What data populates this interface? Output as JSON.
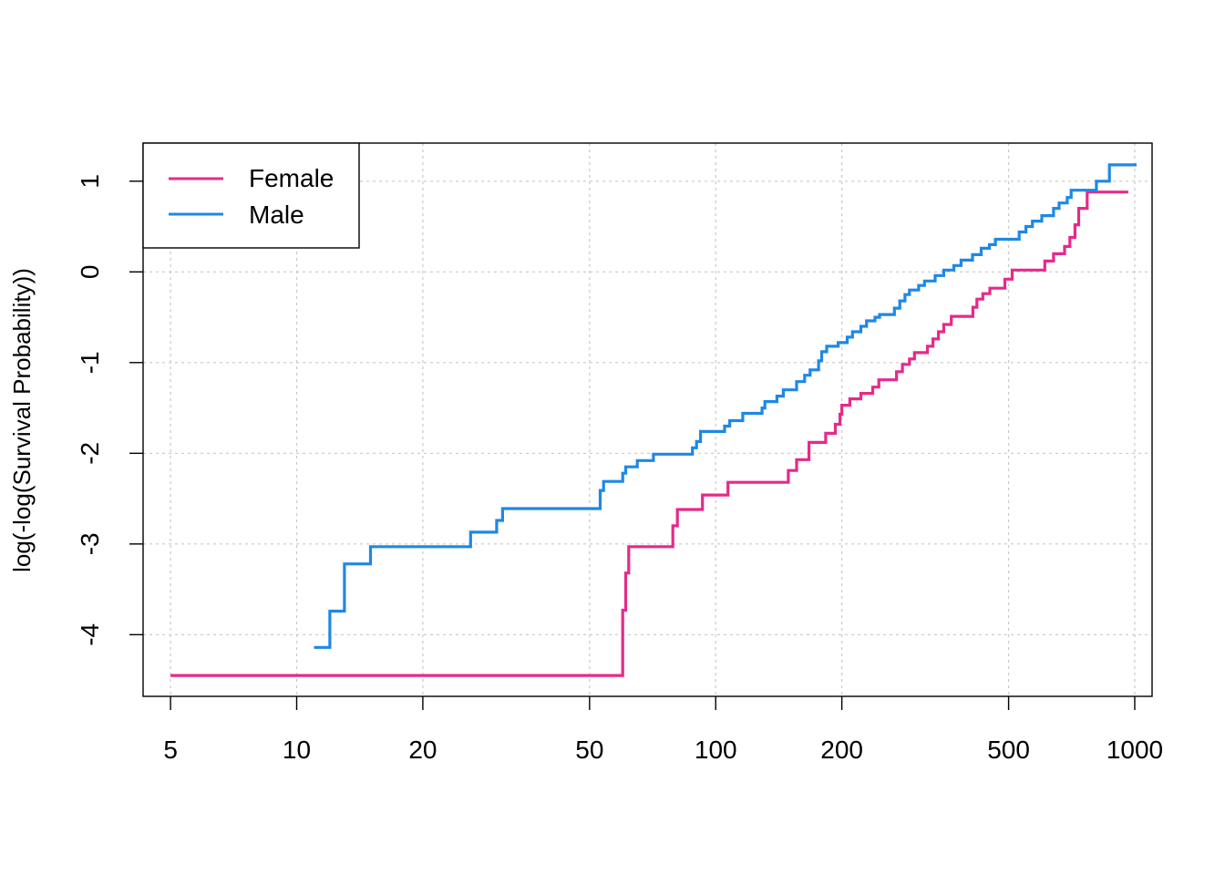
{
  "chart_data": {
    "type": "line",
    "step": true,
    "title": "",
    "xlabel": "",
    "ylabel": "log(-log(Survival Probability))",
    "x_scale": "log",
    "xlim": [
      4.3,
      1100
    ],
    "ylim": [
      -4.68,
      1.42
    ],
    "x_ticks": [
      5,
      10,
      20,
      50,
      100,
      200,
      500,
      1000
    ],
    "x_tick_labels": [
      "5",
      "10",
      "20",
      "50",
      "100",
      "200",
      "500",
      "1000"
    ],
    "y_ticks": [
      -4,
      -3,
      -2,
      -1,
      0,
      1
    ],
    "y_tick_labels": [
      "-4",
      "-3",
      "-2",
      "-1",
      "0",
      "1"
    ],
    "grid": true,
    "legend_position": "top-left",
    "series": [
      {
        "name": "Female",
        "color": "#E7298A",
        "points": [
          [
            5,
            -4.45
          ],
          [
            60,
            -4.45
          ],
          [
            60,
            -3.73
          ],
          [
            61,
            -3.73
          ],
          [
            61,
            -3.32
          ],
          [
            62,
            -3.32
          ],
          [
            62,
            -3.03
          ],
          [
            79,
            -3.03
          ],
          [
            79,
            -2.8
          ],
          [
            81,
            -2.8
          ],
          [
            81,
            -2.62
          ],
          [
            93,
            -2.62
          ],
          [
            93,
            -2.46
          ],
          [
            107,
            -2.46
          ],
          [
            107,
            -2.32
          ],
          [
            149,
            -2.32
          ],
          [
            149,
            -2.19
          ],
          [
            156,
            -2.19
          ],
          [
            156,
            -2.07
          ],
          [
            167,
            -2.07
          ],
          [
            167,
            -1.88
          ],
          [
            183,
            -1.88
          ],
          [
            183,
            -1.78
          ],
          [
            193,
            -1.78
          ],
          [
            193,
            -1.68
          ],
          [
            198,
            -1.68
          ],
          [
            198,
            -1.57
          ],
          [
            200,
            -1.57
          ],
          [
            200,
            -1.47
          ],
          [
            209,
            -1.47
          ],
          [
            209,
            -1.4
          ],
          [
            222,
            -1.4
          ],
          [
            222,
            -1.34
          ],
          [
            237,
            -1.34
          ],
          [
            237,
            -1.27
          ],
          [
            245,
            -1.27
          ],
          [
            245,
            -1.19
          ],
          [
            270,
            -1.19
          ],
          [
            270,
            -1.1
          ],
          [
            279,
            -1.1
          ],
          [
            279,
            -1.02
          ],
          [
            290,
            -1.02
          ],
          [
            290,
            -0.96
          ],
          [
            298,
            -0.96
          ],
          [
            298,
            -0.89
          ],
          [
            320,
            -0.89
          ],
          [
            320,
            -0.82
          ],
          [
            330,
            -0.82
          ],
          [
            330,
            -0.74
          ],
          [
            340,
            -0.74
          ],
          [
            340,
            -0.66
          ],
          [
            350,
            -0.66
          ],
          [
            350,
            -0.58
          ],
          [
            365,
            -0.58
          ],
          [
            365,
            -0.49
          ],
          [
            411,
            -0.49
          ],
          [
            411,
            -0.39
          ],
          [
            420,
            -0.39
          ],
          [
            420,
            -0.3
          ],
          [
            434,
            -0.3
          ],
          [
            434,
            -0.24
          ],
          [
            451,
            -0.24
          ],
          [
            451,
            -0.18
          ],
          [
            490,
            -0.18
          ],
          [
            490,
            -0.08
          ],
          [
            510,
            -0.08
          ],
          [
            510,
            0.02
          ],
          [
            610,
            0.02
          ],
          [
            610,
            0.12
          ],
          [
            640,
            0.12
          ],
          [
            640,
            0.2
          ],
          [
            680,
            0.2
          ],
          [
            680,
            0.28
          ],
          [
            700,
            0.28
          ],
          [
            700,
            0.38
          ],
          [
            720,
            0.38
          ],
          [
            720,
            0.52
          ],
          [
            735,
            0.52
          ],
          [
            735,
            0.7
          ],
          [
            770,
            0.7
          ],
          [
            770,
            0.88
          ],
          [
            965,
            0.88
          ]
        ]
      },
      {
        "name": "Male",
        "color": "#1E88E5",
        "points": [
          [
            11,
            -4.14
          ],
          [
            12,
            -4.14
          ],
          [
            12,
            -3.74
          ],
          [
            13,
            -3.74
          ],
          [
            13,
            -3.22
          ],
          [
            15,
            -3.22
          ],
          [
            15,
            -3.03
          ],
          [
            26,
            -3.03
          ],
          [
            26,
            -2.87
          ],
          [
            30,
            -2.87
          ],
          [
            30,
            -2.74
          ],
          [
            31,
            -2.74
          ],
          [
            31,
            -2.61
          ],
          [
            53,
            -2.61
          ],
          [
            53,
            -2.41
          ],
          [
            54,
            -2.41
          ],
          [
            54,
            -2.31
          ],
          [
            60,
            -2.31
          ],
          [
            60,
            -2.22
          ],
          [
            61,
            -2.22
          ],
          [
            61,
            -2.15
          ],
          [
            65,
            -2.15
          ],
          [
            65,
            -2.08
          ],
          [
            71,
            -2.08
          ],
          [
            71,
            -2.01
          ],
          [
            88,
            -2.01
          ],
          [
            88,
            -1.94
          ],
          [
            90,
            -1.94
          ],
          [
            90,
            -1.87
          ],
          [
            92,
            -1.87
          ],
          [
            92,
            -1.76
          ],
          [
            105,
            -1.76
          ],
          [
            105,
            -1.7
          ],
          [
            108,
            -1.7
          ],
          [
            108,
            -1.64
          ],
          [
            116,
            -1.64
          ],
          [
            116,
            -1.56
          ],
          [
            129,
            -1.56
          ],
          [
            129,
            -1.5
          ],
          [
            131,
            -1.5
          ],
          [
            131,
            -1.43
          ],
          [
            140,
            -1.43
          ],
          [
            140,
            -1.37
          ],
          [
            145,
            -1.37
          ],
          [
            145,
            -1.3
          ],
          [
            156,
            -1.3
          ],
          [
            156,
            -1.21
          ],
          [
            163,
            -1.21
          ],
          [
            163,
            -1.14
          ],
          [
            168,
            -1.14
          ],
          [
            168,
            -1.08
          ],
          [
            176,
            -1.08
          ],
          [
            176,
            -0.98
          ],
          [
            179,
            -0.98
          ],
          [
            179,
            -0.88
          ],
          [
            184,
            -0.88
          ],
          [
            184,
            -0.82
          ],
          [
            196,
            -0.82
          ],
          [
            196,
            -0.78
          ],
          [
            206,
            -0.78
          ],
          [
            206,
            -0.72
          ],
          [
            212,
            -0.72
          ],
          [
            212,
            -0.66
          ],
          [
            222,
            -0.66
          ],
          [
            222,
            -0.6
          ],
          [
            229,
            -0.6
          ],
          [
            229,
            -0.54
          ],
          [
            240,
            -0.54
          ],
          [
            240,
            -0.5
          ],
          [
            246,
            -0.5
          ],
          [
            246,
            -0.47
          ],
          [
            267,
            -0.47
          ],
          [
            267,
            -0.4
          ],
          [
            275,
            -0.4
          ],
          [
            275,
            -0.32
          ],
          [
            283,
            -0.32
          ],
          [
            283,
            -0.25
          ],
          [
            290,
            -0.25
          ],
          [
            290,
            -0.2
          ],
          [
            305,
            -0.2
          ],
          [
            305,
            -0.15
          ],
          [
            315,
            -0.15
          ],
          [
            315,
            -0.1
          ],
          [
            334,
            -0.1
          ],
          [
            334,
            -0.04
          ],
          [
            350,
            -0.04
          ],
          [
            350,
            0.02
          ],
          [
            370,
            0.02
          ],
          [
            370,
            0.07
          ],
          [
            385,
            0.07
          ],
          [
            385,
            0.13
          ],
          [
            410,
            0.13
          ],
          [
            410,
            0.19
          ],
          [
            430,
            0.19
          ],
          [
            430,
            0.26
          ],
          [
            450,
            0.26
          ],
          [
            450,
            0.3
          ],
          [
            465,
            0.3
          ],
          [
            465,
            0.36
          ],
          [
            530,
            0.36
          ],
          [
            530,
            0.44
          ],
          [
            550,
            0.44
          ],
          [
            550,
            0.5
          ],
          [
            570,
            0.5
          ],
          [
            570,
            0.56
          ],
          [
            600,
            0.56
          ],
          [
            600,
            0.62
          ],
          [
            640,
            0.62
          ],
          [
            640,
            0.7
          ],
          [
            660,
            0.7
          ],
          [
            660,
            0.76
          ],
          [
            690,
            0.76
          ],
          [
            690,
            0.82
          ],
          [
            705,
            0.82
          ],
          [
            705,
            0.9
          ],
          [
            810,
            0.9
          ],
          [
            810,
            1.0
          ],
          [
            870,
            1.0
          ],
          [
            870,
            1.18
          ],
          [
            1010,
            1.18
          ]
        ]
      }
    ]
  }
}
